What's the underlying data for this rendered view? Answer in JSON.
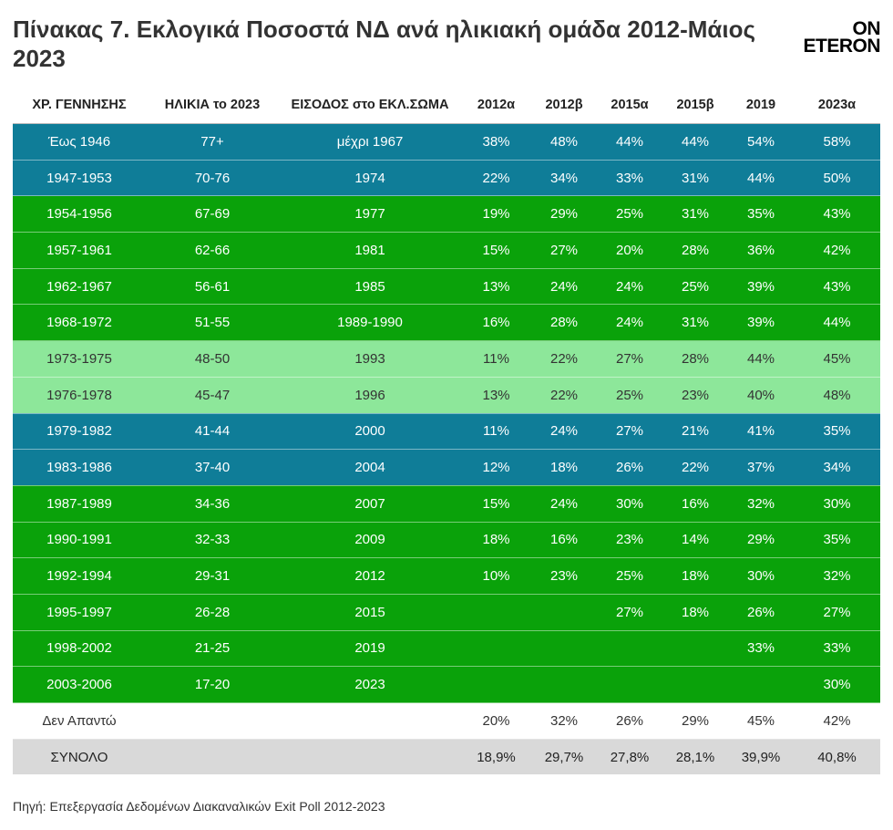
{
  "header": {
    "title": "Πίνακας 7. Εκλογικά Ποσοστά ΝΔ ανά ηλικιακή ομάδα 2012-Μάιος 2023",
    "logo_line1": "ON",
    "logo_line2": "ETERON"
  },
  "colors": {
    "teal": "#0f7d98",
    "green": "#0aa20a",
    "light_green": "#8de79a",
    "total_grey": "#d9d9d9"
  },
  "chart_data": {
    "type": "table",
    "columns": [
      "ΧΡ. ΓΕΝΝΗΣΗΣ",
      "ΗΛΙΚΙΑ το 2023",
      "ΕΙΣΟΔΟΣ στο ΕΚΛ.ΣΩΜΑ",
      "2012α",
      "2012β",
      "2015α",
      "2015β",
      "2019",
      "2023α"
    ],
    "rows": [
      {
        "style": "teal",
        "cells": [
          "Έως 1946",
          "77+",
          "μέχρι 1967",
          "38%",
          "48%",
          "44%",
          "44%",
          "54%",
          "58%"
        ]
      },
      {
        "style": "teal",
        "cells": [
          "1947-1953",
          "70-76",
          "1974",
          "22%",
          "34%",
          "33%",
          "31%",
          "44%",
          "50%"
        ]
      },
      {
        "style": "green",
        "cells": [
          "1954-1956",
          "67-69",
          "1977",
          "19%",
          "29%",
          "25%",
          "31%",
          "35%",
          "43%"
        ]
      },
      {
        "style": "green",
        "cells": [
          "1957-1961",
          "62-66",
          "1981",
          "15%",
          "27%",
          "20%",
          "28%",
          "36%",
          "42%"
        ]
      },
      {
        "style": "green",
        "cells": [
          "1962-1967",
          "56-61",
          "1985",
          "13%",
          "24%",
          "24%",
          "25%",
          "39%",
          "43%"
        ]
      },
      {
        "style": "green",
        "cells": [
          "1968-1972",
          "51-55",
          "1989-1990",
          "16%",
          "28%",
          "24%",
          "31%",
          "39%",
          "44%"
        ]
      },
      {
        "style": "light",
        "cells": [
          "1973-1975",
          "48-50",
          "1993",
          "11%",
          "22%",
          "27%",
          "28%",
          "44%",
          "45%"
        ]
      },
      {
        "style": "light",
        "cells": [
          "1976-1978",
          "45-47",
          "1996",
          "13%",
          "22%",
          "25%",
          "23%",
          "40%",
          "48%"
        ]
      },
      {
        "style": "teal",
        "cells": [
          "1979-1982",
          "41-44",
          "2000",
          "11%",
          "24%",
          "27%",
          "21%",
          "41%",
          "35%"
        ]
      },
      {
        "style": "teal",
        "cells": [
          "1983-1986",
          "37-40",
          "2004",
          "12%",
          "18%",
          "26%",
          "22%",
          "37%",
          "34%"
        ]
      },
      {
        "style": "green",
        "cells": [
          "1987-1989",
          "34-36",
          "2007",
          "15%",
          "24%",
          "30%",
          "16%",
          "32%",
          "30%"
        ]
      },
      {
        "style": "green",
        "cells": [
          "1990-1991",
          "32-33",
          "2009",
          "18%",
          "16%",
          "23%",
          "14%",
          "29%",
          "35%"
        ]
      },
      {
        "style": "green",
        "cells": [
          "1992-1994",
          "29-31",
          "2012",
          "10%",
          "23%",
          "25%",
          "18%",
          "30%",
          "32%"
        ]
      },
      {
        "style": "green",
        "cells": [
          "1995-1997",
          "26-28",
          "2015",
          "",
          "",
          "27%",
          "18%",
          "26%",
          "27%"
        ]
      },
      {
        "style": "green",
        "cells": [
          "1998-2002",
          "21-25",
          "2019",
          "",
          "",
          "",
          "",
          "33%",
          "33%"
        ]
      },
      {
        "style": "green",
        "cells": [
          "2003-2006",
          "17-20",
          "2023",
          "",
          "",
          "",
          "",
          "",
          "30%"
        ]
      },
      {
        "style": "plain",
        "cells": [
          "Δεν Απαντώ",
          "",
          "",
          "20%",
          "32%",
          "26%",
          "29%",
          "45%",
          "42%"
        ]
      },
      {
        "style": "total",
        "cells": [
          "ΣΥΝΟΛΟ",
          "",
          "",
          "18,9%",
          "29,7%",
          "27,8%",
          "28,1%",
          "39,9%",
          "40,8%"
        ]
      }
    ]
  },
  "footer": {
    "source": "Πηγή: Επεξεργασία Δεδομένων Διακαναλικών Exit Poll 2012-2023"
  }
}
